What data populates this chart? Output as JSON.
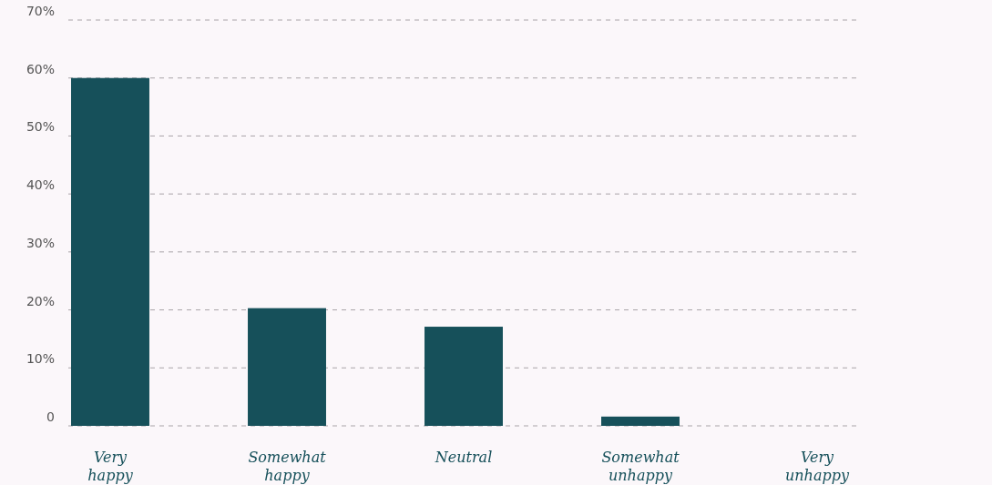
{
  "chart_data": {
    "type": "bar",
    "categories": [
      "Very happy",
      "Somewhat happy",
      "Neutral",
      "Somewhat unhappy",
      "Very unhappy"
    ],
    "values": [
      60,
      20.3,
      17.1,
      1.6,
      0
    ],
    "color": "#16505a",
    "ylim": [
      0,
      70
    ],
    "yticks": [
      0,
      {
        "value": 10,
        "label": "10%"
      },
      {
        "value": 20,
        "label": "20%"
      },
      {
        "value": 30,
        "label": "30%"
      },
      {
        "value": 40,
        "label": "40%"
      },
      {
        "value": 50,
        "label": "50%"
      },
      {
        "value": 60,
        "label": "60%"
      },
      {
        "value": 70,
        "label": "70%"
      }
    ],
    "grid": "y"
  }
}
